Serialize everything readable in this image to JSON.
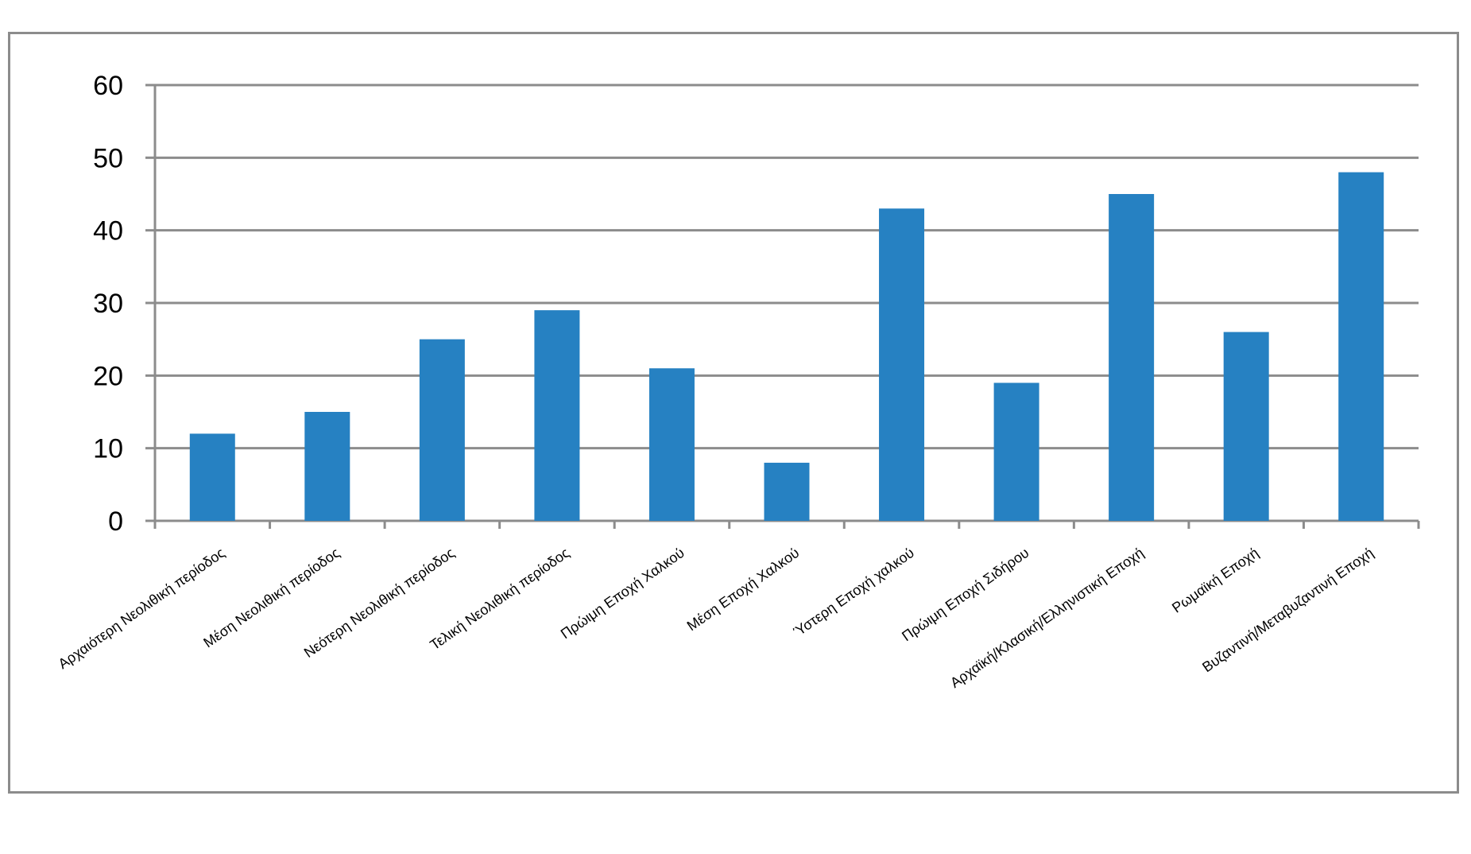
{
  "chart_data": {
    "type": "bar",
    "categories": [
      "Αρχαιότερη Νεολιθική περίοδος",
      "Μέση Νεολιθική περίοδος",
      "Νεότερη Νεολιθική περίοδος",
      "Τελική Νεολιθική περίοδος",
      "Πρώιμη Εποχή Χαλκού",
      "Μέση Εποχή Χαλκού",
      "Ύστερη Εποχή χαλκού",
      "Πρώιμη Εποχή Σιδήρου",
      "Αρχαϊκή/Κλασική/Ελληνιστική Εποχή",
      "Ρωμαϊκή Εποχή",
      "Βυζαντινή/Μεταβυζαντινή Εποχή"
    ],
    "values": [
      12,
      15,
      25,
      29,
      21,
      8,
      43,
      19,
      45,
      26,
      48
    ],
    "title": "",
    "xlabel": "",
    "ylabel": "",
    "ylim": [
      0,
      60
    ],
    "yticks": [
      "0",
      "10",
      "20",
      "30",
      "40",
      "50",
      "60"
    ],
    "grid": true,
    "legend": "none",
    "colors": {
      "bar": "#2681C2",
      "grid": "#8c8c8c",
      "frame": "#8c8c8c"
    }
  }
}
